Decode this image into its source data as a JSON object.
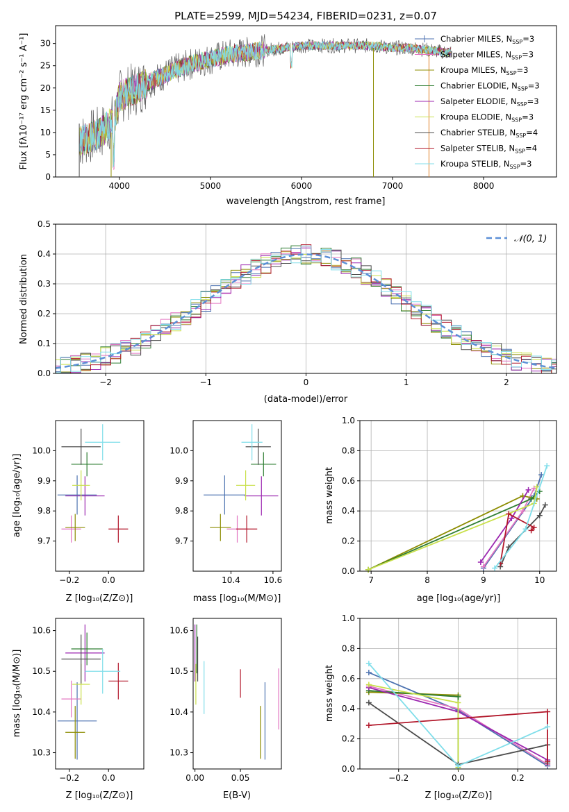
{
  "figure_title": "PLATE=2599, MJD=54234, FIBERID=0231, z=0.07",
  "legend_series": [
    {
      "name": "Chabrier MILES, N",
      "sub": "SSP",
      "tail": "=3",
      "color": "#4C72B0"
    },
    {
      "name": "Salpeter MILES, N",
      "sub": "SSP",
      "tail": "=3",
      "color": "#E377C2"
    },
    {
      "name": "Kroupa MILES, N",
      "sub": "SSP",
      "tail": "=3",
      "color": "#8C8C00"
    },
    {
      "name": "Chabrier ELODIE, N",
      "sub": "SSP",
      "tail": "=3",
      "color": "#2E7D32"
    },
    {
      "name": "Salpeter ELODIE, N",
      "sub": "SSP",
      "tail": "=3",
      "color": "#9C27B0"
    },
    {
      "name": "Kroupa ELODIE, N",
      "sub": "SSP",
      "tail": "=3",
      "color": "#C9E04A"
    },
    {
      "name": "Chabrier STELIB, N",
      "sub": "SSP",
      "tail": "=4",
      "color": "#4D4D4D"
    },
    {
      "name": "Salpeter STELIB, N",
      "sub": "SSP",
      "tail": "=4",
      "color": "#B2182B"
    },
    {
      "name": "Kroupa STELIB, N",
      "sub": "SSP",
      "tail": "=3",
      "color": "#80DEEA"
    }
  ],
  "panels_text": {
    "spec_xlabel": "wavelength [Angstrom, rest frame]",
    "spec_ylabel": "Flux [fλ10⁻¹⁷ erg cm⁻² s⁻¹ A⁻¹]",
    "hist_xlabel": "(data-model)/error",
    "hist_ylabel": "Normed distribution",
    "hist_legend": "𝒩(0, 1)",
    "zage_xlabel": "Z [log₁₀(Z/Z⊙)]",
    "zage_ylabel": "age  [log₁₀(age/yr)]",
    "massage_xlabel": "mass [log₁₀(M/M⊙)]",
    "agew_xlabel": "age  [log₁₀(age/yr)]",
    "agew_ylabel": "mass weight",
    "zmass_xlabel": "Z [log₁₀(Z/Z⊙)]",
    "zmass_ylabel": "mass [log₁₀(M/M⊙)]",
    "ebv_xlabel": "E(B-V)",
    "zw_xlabel": "Z [log₁₀(Z/Z⊙)]",
    "zw_ylabel": "mass weight"
  },
  "chart_data": [
    {
      "type": "line",
      "title": "PLATE=2599, MJD=54234, FIBERID=0231, z=0.07",
      "xlabel": "wavelength [Angstrom, rest frame]",
      "ylabel": "Flux [fλ10⁻¹⁷ erg cm⁻² s⁻¹ A⁻¹]",
      "xlim": [
        3300,
        8800
      ],
      "ylim": [
        0,
        34
      ],
      "xticks": [
        4000,
        5000,
        6000,
        7000,
        8000
      ],
      "yticks": [
        0,
        5,
        10,
        15,
        20,
        25,
        30
      ],
      "continuum": {
        "x": [
          3560,
          3800,
          3950,
          4000,
          4200,
          4400,
          4600,
          4800,
          5000,
          5200,
          5400,
          5600,
          5800,
          6000,
          6200,
          6400,
          6600,
          6800,
          7000,
          7200,
          7400,
          7600,
          7800,
          8000,
          8200,
          8400,
          8600,
          8800
        ],
        "y": [
          8,
          10,
          13,
          18,
          20,
          22,
          24,
          25.5,
          26.5,
          27.5,
          28,
          28.5,
          29,
          29.5,
          29.5,
          29.5,
          29.5,
          29.5,
          29,
          29,
          28.5,
          28,
          28.5,
          28.5,
          28.5,
          28,
          27.5,
          27
        ]
      },
      "grid": false,
      "legend_position": "upper right"
    },
    {
      "type": "line",
      "xlabel": "(data-model)/error",
      "ylabel": "Normed distribution",
      "xlim": [
        -2.5,
        2.5
      ],
      "ylim": [
        0,
        0.5
      ],
      "xticks": [
        -2,
        -1,
        0,
        1,
        2
      ],
      "yticks": [
        0.0,
        0.1,
        0.2,
        0.3,
        0.4,
        0.5
      ],
      "grid": true,
      "series": [
        {
          "name": "𝒩(0, 1)",
          "function": "normal(0,1)"
        }
      ],
      "legend_position": "upper right"
    },
    {
      "type": "scatter",
      "xlabel": "Z [log₁₀(Z/Z⊙)]",
      "ylabel": "age  [log₁₀(age/yr)]",
      "xlim": [
        -0.27,
        0.18
      ],
      "ylim": [
        9.6,
        10.1
      ],
      "xticks": [
        -0.2,
        0.0
      ],
      "yticks": [
        9.7,
        9.8,
        9.9,
        10.0
      ],
      "points": [
        {
          "x": -0.16,
          "y": 9.853,
          "xerr": 0.1,
          "yerr": 0.065
        },
        {
          "x": -0.19,
          "y": 9.74,
          "xerr": 0.05,
          "yerr": 0.045
        },
        {
          "x": -0.17,
          "y": 9.745,
          "xerr": 0.05,
          "yerr": 0.045
        },
        {
          "x": -0.11,
          "y": 9.955,
          "xerr": 0.08,
          "yerr": 0.04
        },
        {
          "x": -0.12,
          "y": 9.85,
          "xerr": 0.1,
          "yerr": 0.065
        },
        {
          "x": -0.14,
          "y": 9.885,
          "xerr": 0.045,
          "yerr": 0.05
        },
        {
          "x": -0.14,
          "y": 10.013,
          "xerr": 0.1,
          "yerr": 0.06
        },
        {
          "x": 0.05,
          "y": 9.74,
          "xerr": 0.05,
          "yerr": 0.045
        },
        {
          "x": -0.03,
          "y": 10.028,
          "xerr": 0.09,
          "yerr": 0.06
        }
      ]
    },
    {
      "type": "scatter",
      "xlabel": "mass [log₁₀(M/M⊙)]",
      "xlim": [
        10.22,
        10.64
      ],
      "ylim": [
        9.6,
        10.1
      ],
      "xticks": [
        10.4,
        10.6
      ],
      "yticks": [
        9.7,
        9.8,
        9.9,
        10.0
      ],
      "points": [
        {
          "x": 10.37,
          "y": 9.853,
          "xerr": 0.1,
          "yerr": 0.065
        },
        {
          "x": 10.43,
          "y": 9.74,
          "xerr": 0.05,
          "yerr": 0.045
        },
        {
          "x": 10.35,
          "y": 9.745,
          "xerr": 0.05,
          "yerr": 0.045
        },
        {
          "x": 10.555,
          "y": 9.955,
          "xerr": 0.06,
          "yerr": 0.04
        },
        {
          "x": 10.545,
          "y": 9.85,
          "xerr": 0.08,
          "yerr": 0.065
        },
        {
          "x": 10.47,
          "y": 9.885,
          "xerr": 0.045,
          "yerr": 0.05
        },
        {
          "x": 10.53,
          "y": 10.013,
          "xerr": 0.06,
          "yerr": 0.06
        },
        {
          "x": 10.475,
          "y": 9.74,
          "xerr": 0.05,
          "yerr": 0.045
        },
        {
          "x": 10.5,
          "y": 10.028,
          "xerr": 0.05,
          "yerr": 0.06
        }
      ]
    },
    {
      "type": "line",
      "xlabel": "age  [log₁₀(age/yr)]",
      "ylabel": "mass weight",
      "xlim": [
        6.8,
        10.3
      ],
      "ylim": [
        0,
        1
      ],
      "xticks": [
        7,
        8,
        9,
        10
      ],
      "yticks": [
        0.0,
        0.2,
        0.4,
        0.6,
        0.8,
        1.0
      ],
      "grid": true,
      "series": [
        {
          "x": [
            9.0,
            9.9,
            10.03
          ],
          "y": [
            0.02,
            0.5,
            0.64
          ]
        },
        {
          "x": [
            9.0,
            9.7,
            9.9
          ],
          "y": [
            0.03,
            0.4,
            0.55
          ]
        },
        {
          "x": [
            6.95,
            9.7,
            9.95
          ],
          "y": [
            0.01,
            0.5,
            0.48
          ]
        },
        {
          "x": [
            6.95,
            9.85,
            10.0
          ],
          "y": [
            0.01,
            0.48,
            0.53
          ]
        },
        {
          "x": [
            8.95,
            9.5,
            9.8
          ],
          "y": [
            0.06,
            0.35,
            0.54
          ]
        },
        {
          "x": [
            6.95,
            9.9,
            9.95
          ],
          "y": [
            0.01,
            0.45,
            0.56
          ]
        },
        {
          "x": [
            9.3,
            9.45,
            10.0,
            10.1
          ],
          "y": [
            0.03,
            0.16,
            0.37,
            0.44
          ]
        },
        {
          "x": [
            9.3,
            9.45,
            9.9,
            9.85
          ],
          "y": [
            0.05,
            0.38,
            0.29,
            0.27
          ]
        },
        {
          "x": [
            9.2,
            9.75,
            10.13
          ],
          "y": [
            0.02,
            0.28,
            0.7
          ]
        }
      ]
    },
    {
      "type": "scatter",
      "xlabel": "Z [log₁₀(Z/Z⊙)]",
      "ylabel": "mass [log₁₀(M/M⊙)]",
      "xlim": [
        -0.27,
        0.18
      ],
      "ylim": [
        10.26,
        10.63
      ],
      "xticks": [
        -0.2,
        0.0
      ],
      "yticks": [
        10.3,
        10.4,
        10.5,
        10.6
      ],
      "points": [
        {
          "x": -0.16,
          "y": 10.378,
          "xerr": 0.1,
          "yerr": 0.095
        },
        {
          "x": -0.19,
          "y": 10.432,
          "xerr": 0.05,
          "yerr": 0.045
        },
        {
          "x": -0.17,
          "y": 10.35,
          "xerr": 0.05,
          "yerr": 0.065
        },
        {
          "x": -0.11,
          "y": 10.555,
          "xerr": 0.08,
          "yerr": 0.04
        },
        {
          "x": -0.12,
          "y": 10.545,
          "xerr": 0.1,
          "yerr": 0.07
        },
        {
          "x": -0.14,
          "y": 10.468,
          "xerr": 0.045,
          "yerr": 0.05
        },
        {
          "x": -0.14,
          "y": 10.53,
          "xerr": 0.1,
          "yerr": 0.06
        },
        {
          "x": 0.05,
          "y": 10.476,
          "xerr": 0.05,
          "yerr": 0.045
        },
        {
          "x": -0.03,
          "y": 10.5,
          "xerr": 0.09,
          "yerr": 0.055
        }
      ]
    },
    {
      "type": "scatter",
      "xlabel": "E(B-V)",
      "xlim": [
        -0.002,
        0.095
      ],
      "ylim": [
        10.26,
        10.63
      ],
      "xticks": [
        0.0,
        0.05
      ],
      "yticks": [
        10.3,
        10.4,
        10.5,
        10.6
      ],
      "points": [
        {
          "x": 0.077,
          "y": 10.378,
          "yerr": 0.095
        },
        {
          "x": 0.092,
          "y": 10.432,
          "yerr": 0.075
        },
        {
          "x": 0.072,
          "y": 10.35,
          "yerr": 0.065
        },
        {
          "x": 0.002,
          "y": 10.555,
          "yerr": 0.06
        },
        {
          "x": 0.0,
          "y": 10.545,
          "yerr": 0.07
        },
        {
          "x": 0.001,
          "y": 10.468,
          "yerr": 0.05
        },
        {
          "x": 0.003,
          "y": 10.53,
          "yerr": 0.055
        },
        {
          "x": 0.05,
          "y": 10.47,
          "yerr": 0.035
        },
        {
          "x": 0.01,
          "y": 10.46,
          "yerr": 0.065
        }
      ]
    },
    {
      "type": "line",
      "xlabel": "Z [log₁₀(Z/Z⊙)]",
      "ylabel": "mass weight",
      "xlim": [
        -0.33,
        0.33
      ],
      "ylim": [
        0,
        1
      ],
      "xticks": [
        -0.2,
        0.0,
        0.2
      ],
      "yticks": [
        0.0,
        0.2,
        0.4,
        0.6,
        0.8,
        1.0
      ],
      "grid": true,
      "series": [
        {
          "x": [
            -0.3,
            0.0,
            0.3
          ],
          "y": [
            0.64,
            0.39,
            0.02
          ]
        },
        {
          "x": [
            -0.3,
            0.0,
            0.3
          ],
          "y": [
            0.55,
            0.4,
            0.03
          ]
        },
        {
          "x": [
            -0.3,
            0.0
          ],
          "y": [
            0.51,
            0.49
          ]
        },
        {
          "x": [
            -0.3,
            0.0,
            0.0
          ],
          "y": [
            0.52,
            0.48,
            0.01
          ]
        },
        {
          "x": [
            -0.3,
            0.0,
            0.3
          ],
          "y": [
            0.54,
            0.38,
            0.06
          ]
        },
        {
          "x": [
            -0.3,
            0.0,
            0.0
          ],
          "y": [
            0.56,
            0.44,
            0.01
          ]
        },
        {
          "x": [
            -0.3,
            0.0,
            0.3,
            0.3
          ],
          "y": [
            0.44,
            0.03,
            0.16,
            0.04
          ]
        },
        {
          "x": [
            -0.3,
            0.3,
            0.3
          ],
          "y": [
            0.29,
            0.38,
            0.05
          ]
        },
        {
          "x": [
            -0.3,
            0.0,
            0.3
          ],
          "y": [
            0.7,
            0.02,
            0.28
          ]
        }
      ]
    }
  ]
}
